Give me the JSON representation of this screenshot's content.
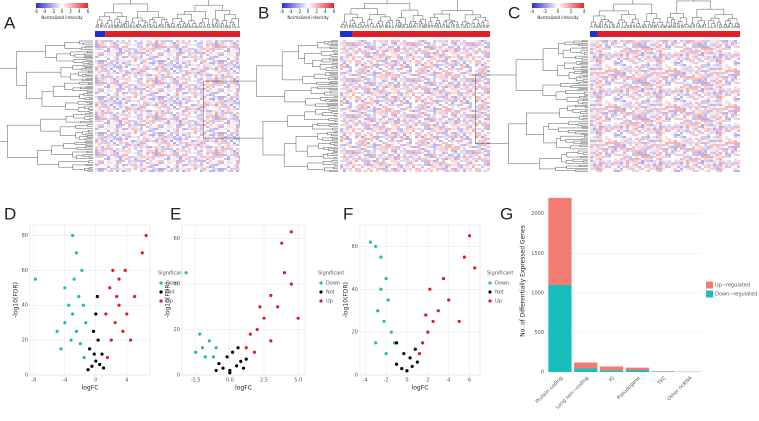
{
  "chart_data": [
    {
      "type": "heatmap",
      "panel": "A",
      "colorbar_label": "Normalized intensity",
      "colorbar_ticks": [
        -6,
        -4,
        -2,
        0,
        2,
        4,
        6
      ],
      "colors": [
        "#2b2bd6",
        "#ffffff",
        "#e8262a"
      ]
    },
    {
      "type": "heatmap",
      "panel": "B",
      "colorbar_label": "Normalized intensity",
      "colorbar_ticks": [
        -6,
        -4,
        -2,
        0,
        2,
        4,
        6
      ],
      "colors": [
        "#2b2bd6",
        "#ffffff",
        "#e8262a"
      ]
    },
    {
      "type": "heatmap",
      "panel": "C",
      "colorbar_label": "Normalized intensity",
      "colorbar_ticks": [
        -4,
        -2,
        0,
        2,
        4
      ],
      "colors": [
        "#2b2bd6",
        "#ffffff",
        "#e8262a"
      ]
    },
    {
      "type": "scatter",
      "panel": "D",
      "xlabel": "logFC",
      "ylabel": "-log10(FDR)",
      "legend_title": "Significan",
      "xlim": [
        -8.5,
        7
      ],
      "xticks": [
        -8,
        -4,
        0,
        4
      ],
      "ylim": [
        0,
        86
      ],
      "yticks": [
        0,
        20,
        40,
        60,
        80
      ],
      "grid": true,
      "series": [
        {
          "name": "Down",
          "color": "#1fbab5",
          "x": [
            -1.5,
            -2,
            -2.5,
            -3,
            -3.5,
            -4,
            -2.2,
            -1.8,
            -2.8,
            -3.2,
            -4.5,
            -5,
            -1.3,
            -2.5,
            -3,
            -7.8,
            -1.6,
            -4
          ],
          "values": [
            10,
            18,
            25,
            35,
            40,
            30,
            45,
            60,
            55,
            20,
            15,
            25,
            30,
            70,
            80,
            55,
            40,
            50
          ]
        },
        {
          "name": "Not",
          "color": "#000000",
          "x": [
            -0.5,
            0,
            0.5,
            -0.8,
            0.8,
            -0.3,
            0.3,
            0,
            -1,
            1,
            0.2,
            -0.2
          ],
          "values": [
            5,
            8,
            6,
            15,
            12,
            25,
            20,
            35,
            3,
            4,
            45,
            12
          ]
        },
        {
          "name": "Up",
          "color": "#e41a1c",
          "x": [
            1.5,
            2,
            2.5,
            3,
            3.5,
            4,
            1.8,
            2.2,
            3,
            4.5,
            5,
            6,
            6.5,
            1.3,
            2.7,
            3.8
          ],
          "values": [
            10,
            20,
            30,
            40,
            25,
            35,
            50,
            60,
            55,
            20,
            45,
            70,
            80,
            35,
            45,
            60
          ]
        }
      ]
    },
    {
      "type": "scatter",
      "panel": "E",
      "xlabel": "logFC",
      "ylabel": "-log10(FDR)",
      "legend_title": "Significant",
      "xlim": [
        -3.5,
        5.5
      ],
      "xticks": [
        -2.5,
        {
          "value": 0,
          "label": "0.0"
        },
        2.5,
        {
          "value": 5,
          "label": "5.0"
        }
      ],
      "ylim": [
        0,
        66
      ],
      "yticks": [
        0,
        20,
        40,
        60
      ],
      "grid": true,
      "series": [
        {
          "name": "Down",
          "color": "#1fbab5",
          "x": [
            -3.2,
            -2,
            -1.8,
            -2.5,
            -1.5,
            -1,
            -1.2,
            -2.2
          ],
          "values": [
            45,
            12,
            8,
            10,
            15,
            12,
            8,
            18
          ]
        },
        {
          "name": "Not",
          "color": "#000000",
          "x": [
            -0.8,
            -0.5,
            0,
            0.5,
            0.8,
            -0.2,
            0.2,
            1,
            -1,
            1.2,
            0,
            0.6
          ],
          "values": [
            5,
            3,
            2,
            4,
            6,
            8,
            10,
            3,
            2,
            7,
            1,
            12
          ]
        },
        {
          "name": "Up",
          "color": "#e41a1c",
          "x": [
            1.2,
            1.5,
            2,
            2.5,
            3,
            3.5,
            4,
            4.5,
            3.8,
            4.5,
            2.2,
            1.8,
            3,
            5
          ],
          "values": [
            12,
            18,
            20,
            25,
            35,
            30,
            45,
            40,
            58,
            63,
            30,
            10,
            15,
            25
          ]
        }
      ]
    },
    {
      "type": "scatter",
      "panel": "F",
      "xlabel": "logFC",
      "ylabel": "-log10(FDR)",
      "legend_title": "Significant",
      "xlim": [
        -4.5,
        7
      ],
      "xticks": [
        -4,
        -2,
        0,
        2,
        4,
        6
      ],
      "ylim": [
        0,
        70
      ],
      "yticks": [
        0,
        20,
        40,
        60
      ],
      "grid": true,
      "series": [
        {
          "name": "Down",
          "color": "#1fbab5",
          "x": [
            -3.5,
            -3,
            -2.5,
            -2,
            -2.8,
            -2.2,
            -1.5,
            -3,
            -2,
            -1.2,
            -2.5,
            -1.8
          ],
          "values": [
            62,
            60,
            40,
            45,
            30,
            25,
            20,
            15,
            10,
            15,
            55,
            35
          ]
        },
        {
          "name": "Not",
          "color": "#000000",
          "x": [
            -1,
            -0.5,
            0,
            0.5,
            1,
            -0.3,
            0.3,
            -1,
            0.8
          ],
          "values": [
            5,
            3,
            2,
            4,
            6,
            10,
            8,
            15,
            12
          ]
        },
        {
          "name": "Up",
          "color": "#e41a1c",
          "x": [
            1.2,
            1.5,
            2,
            2.5,
            3,
            2.2,
            4,
            5,
            5.5,
            6,
            6.5,
            1.8,
            3.5
          ],
          "values": [
            10,
            15,
            20,
            25,
            30,
            40,
            35,
            25,
            55,
            65,
            50,
            28,
            45
          ]
        }
      ]
    },
    {
      "type": "bar",
      "panel": "G",
      "ylabel": "No. of Differentially Expressed Genes",
      "categories": [
        "Protein coding",
        "Long non−coding",
        "IG",
        "Pseudogene",
        "TEC",
        "Other ncRNA"
      ],
      "ylim": [
        0,
        2300
      ],
      "yticks": [
        0,
        500,
        1000,
        1500,
        2000
      ],
      "grid": true,
      "stacked": true,
      "series": [
        {
          "name": "Up−regulated",
          "color": "#f27b72",
          "values": [
            1100,
            75,
            50,
            30,
            5,
            2
          ]
        },
        {
          "name": "Down−regulated",
          "color": "#19bdbd",
          "values": [
            1100,
            45,
            20,
            25,
            5,
            3
          ]
        }
      ]
    }
  ]
}
